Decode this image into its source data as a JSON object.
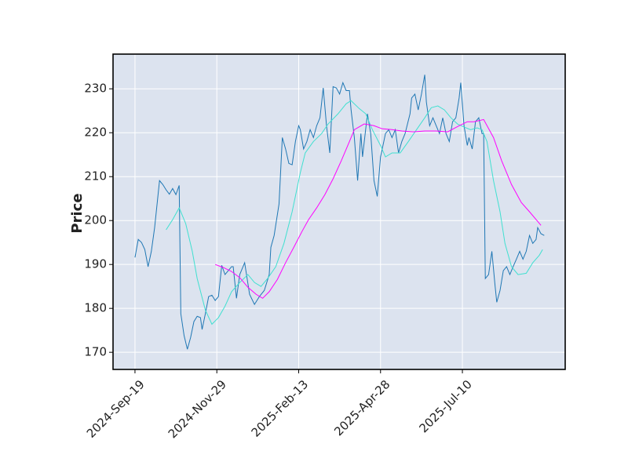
{
  "chart_data": {
    "type": "line",
    "ylabel": "Price",
    "xlim": [
      -13.4,
      262.8
    ],
    "ylim": [
      166.1,
      237.9
    ],
    "xticks": [
      {
        "value": 0,
        "label": "2024-Sep-19"
      },
      {
        "value": 50,
        "label": "2024-Nov-29"
      },
      {
        "value": 100,
        "label": "2025-Feb-13"
      },
      {
        "value": 150,
        "label": "2025-Apr-28"
      },
      {
        "value": 200,
        "label": "2025-Jul-10"
      }
    ],
    "yticks": [
      170,
      180,
      190,
      200,
      210,
      220,
      230
    ],
    "grid": true,
    "background": "#dce3ef",
    "series": [
      {
        "color": "#1f77b4",
        "x": [
          0,
          2,
          4,
          6,
          8,
          10,
          12,
          15,
          17,
          19,
          21,
          23,
          25,
          27,
          28,
          30,
          32,
          34,
          36,
          38,
          40,
          41,
          43,
          45,
          47,
          49,
          51,
          53,
          55,
          57,
          59,
          60,
          62,
          64,
          67,
          70,
          73,
          76,
          79,
          82,
          83,
          85,
          88,
          90,
          92,
          94,
          96,
          98,
          100,
          101,
          103,
          105,
          107,
          109,
          111,
          113,
          115,
          117,
          119,
          121,
          123,
          125,
          127,
          129,
          131,
          132,
          134,
          136,
          138,
          139,
          142,
          144,
          146,
          148,
          150,
          152,
          153,
          155,
          157,
          159,
          161,
          163,
          165,
          168,
          169,
          171,
          173,
          175,
          177,
          178,
          180,
          182,
          184,
          186,
          188,
          190,
          192,
          194,
          196,
          198,
          199,
          201,
          203,
          204,
          206,
          208,
          210,
          212,
          213,
          214,
          216,
          218,
          220,
          221,
          223,
          225,
          227,
          229,
          231,
          233,
          235,
          237,
          239,
          241,
          243,
          245,
          246,
          248,
          250
        ],
        "values": [
          191.6,
          195.7,
          195,
          193.4,
          189.5,
          193,
          198.4,
          209.1,
          208.2,
          207,
          206,
          207.3,
          205.9,
          208,
          178.8,
          173.8,
          170.7,
          173.4,
          177,
          178.2,
          177.9,
          175.2,
          178.8,
          182.7,
          183,
          181.8,
          182.7,
          189.8,
          187.7,
          188.6,
          189.5,
          189.5,
          182.3,
          187.7,
          190.4,
          183.2,
          180.9,
          182.7,
          184.1,
          187.7,
          193.9,
          196.6,
          203.8,
          218.9,
          216.3,
          213,
          212.7,
          218,
          221.6,
          220.7,
          216.3,
          218,
          220.7,
          218.9,
          221.6,
          223.4,
          230.2,
          221.6,
          215.4,
          230.5,
          230.2,
          228.8,
          231.4,
          229.6,
          229.6,
          225.2,
          218.9,
          209.1,
          219.8,
          214.5,
          224.3,
          219.8,
          209.1,
          205.5,
          214.5,
          218,
          219.8,
          220.7,
          218.9,
          220.7,
          215.4,
          218,
          219.8,
          224.3,
          227.9,
          228.8,
          225.2,
          228.8,
          233.2,
          227,
          221.6,
          223.4,
          221.6,
          219.8,
          223.4,
          219.8,
          218,
          222.5,
          223.4,
          227.9,
          231.4,
          221.6,
          217.1,
          218.9,
          216.3,
          222.5,
          223.4,
          219.8,
          219.8,
          186.8,
          187.7,
          193,
          185,
          181.4,
          184.1,
          188.6,
          189.5,
          187.7,
          189.5,
          191.2,
          193,
          191.2,
          193,
          196.6,
          194.8,
          195.7,
          198.4,
          197,
          196.6
        ]
      },
      {
        "color": "#40e0d0",
        "x": [
          19,
          23,
          27,
          31,
          35,
          38,
          43,
          47,
          51,
          55,
          59,
          64,
          69,
          73,
          77,
          81,
          86,
          91,
          96,
          101,
          104,
          109,
          114,
          118,
          124,
          129,
          132,
          137,
          141,
          145,
          150,
          153,
          157,
          162,
          167,
          172,
          177,
          181,
          185,
          189,
          193,
          197,
          201,
          205,
          209,
          212,
          215,
          219,
          223,
          226,
          230,
          234,
          239,
          243,
          247,
          249
        ],
        "values": [
          197.9,
          200.2,
          202.9,
          199.3,
          193,
          186.8,
          179.6,
          176.4,
          177.9,
          180.5,
          183.8,
          185.9,
          187.7,
          185.9,
          185,
          186.8,
          189.5,
          194.8,
          202,
          210.9,
          215.4,
          218,
          219.8,
          222,
          224.3,
          226.6,
          227.3,
          225.5,
          224.3,
          220.7,
          217.1,
          214.5,
          215.4,
          215.4,
          218,
          220.7,
          223.4,
          225.7,
          226.1,
          225.2,
          223.4,
          222,
          221.3,
          220.7,
          221.1,
          220.7,
          218,
          209.1,
          202,
          194.8,
          189.5,
          187.7,
          188,
          190.4,
          192.1,
          193.4
        ]
      },
      {
        "color": "#ff00ff",
        "x": [
          49,
          54,
          59,
          64,
          69,
          74,
          78,
          82,
          87,
          92,
          97,
          102,
          106,
          111,
          116,
          121,
          126,
          131,
          134,
          140,
          146,
          151,
          157,
          163,
          170,
          177,
          184,
          191,
          198,
          203,
          207,
          213,
          219,
          224,
          230,
          236,
          241,
          246,
          248
        ],
        "values": [
          190,
          189.3,
          188.4,
          187,
          184.8,
          183.2,
          182.3,
          183.8,
          186.6,
          190.4,
          193.9,
          197.5,
          200.2,
          202.9,
          205.9,
          209.5,
          213.6,
          218,
          220.7,
          222,
          221.6,
          220.9,
          220.7,
          220.4,
          220.2,
          220.4,
          220.4,
          220.2,
          221.6,
          222.5,
          222.5,
          223,
          218.9,
          213.6,
          208.2,
          204.1,
          202,
          199.8,
          198.9
        ]
      }
    ]
  }
}
